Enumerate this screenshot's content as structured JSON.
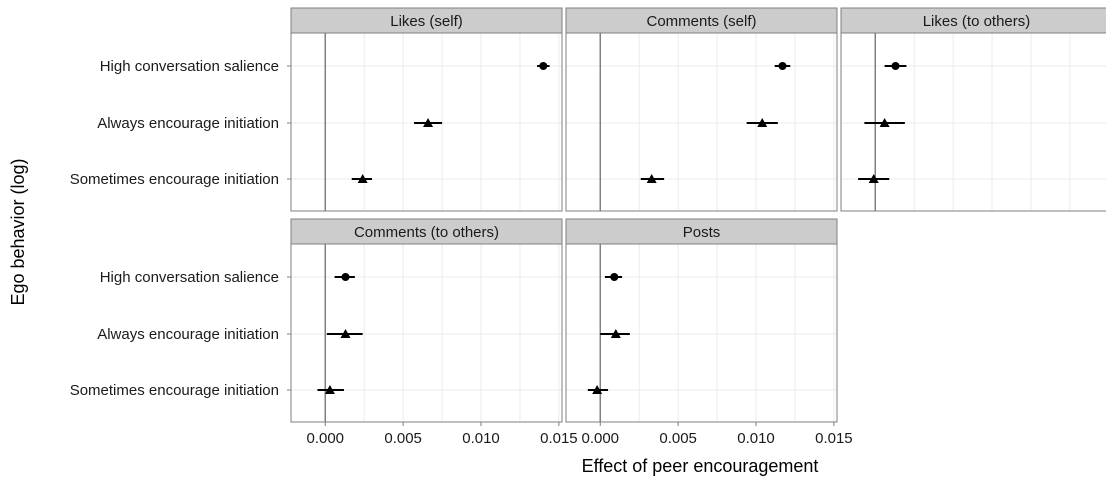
{
  "chart_data": {
    "type": "scatter",
    "variant": "faceted point-range (estimate with error bars)",
    "xlabel": "Effect of peer encouragement",
    "ylabel": "Ego behavior (log)",
    "categories": [
      "High conversation salience",
      "Always encourage initiation",
      "Sometimes encourage initiation"
    ],
    "xlim": [
      -0.0022,
      0.0152
    ],
    "x_ticks": [
      0.0,
      0.005,
      0.01,
      0.015
    ],
    "x_tick_labels": [
      "0.000",
      "0.005",
      "0.010",
      "0.015"
    ],
    "reference_line_x": 0,
    "grid": true,
    "marker_shapes": {
      "High conversation salience": "circle",
      "Always encourage initiation": "triangle",
      "Sometimes encourage initiation": "triangle"
    },
    "panels": [
      {
        "title": "Likes (self)",
        "points": [
          {
            "category": "High conversation salience",
            "estimate": 0.014,
            "lower": 0.0136,
            "upper": 0.0144
          },
          {
            "category": "Always encourage initiation",
            "estimate": 0.0066,
            "lower": 0.0057,
            "upper": 0.0075
          },
          {
            "category": "Sometimes encourage initiation",
            "estimate": 0.0024,
            "lower": 0.0017,
            "upper": 0.003
          }
        ]
      },
      {
        "title": "Comments (self)",
        "points": [
          {
            "category": "High conversation salience",
            "estimate": 0.0117,
            "lower": 0.0112,
            "upper": 0.0122
          },
          {
            "category": "Always encourage initiation",
            "estimate": 0.0104,
            "lower": 0.0094,
            "upper": 0.0114
          },
          {
            "category": "Sometimes encourage initiation",
            "estimate": 0.0033,
            "lower": 0.0026,
            "upper": 0.0041
          }
        ]
      },
      {
        "title": "Likes (to others)",
        "points": [
          {
            "category": "High conversation salience",
            "estimate": 0.0013,
            "lower": 0.0006,
            "upper": 0.002
          },
          {
            "category": "Always encourage initiation",
            "estimate": 0.0006,
            "lower": -0.0007,
            "upper": 0.0019
          },
          {
            "category": "Sometimes encourage initiation",
            "estimate": -0.0001,
            "lower": -0.0011,
            "upper": 0.0009
          }
        ]
      },
      {
        "title": "Comments (to others)",
        "points": [
          {
            "category": "High conversation salience",
            "estimate": 0.0013,
            "lower": 0.0006,
            "upper": 0.0019
          },
          {
            "category": "Always encourage initiation",
            "estimate": 0.0013,
            "lower": 0.0001,
            "upper": 0.0024
          },
          {
            "category": "Sometimes encourage initiation",
            "estimate": 0.0003,
            "lower": -0.0005,
            "upper": 0.0012
          }
        ]
      },
      {
        "title": "Posts",
        "points": [
          {
            "category": "High conversation salience",
            "estimate": 0.0009,
            "lower": 0.0003,
            "upper": 0.0014
          },
          {
            "category": "Always encourage initiation",
            "estimate": 0.001,
            "lower": 0.0,
            "upper": 0.0019
          },
          {
            "category": "Sometimes encourage initiation",
            "estimate": -0.0002,
            "lower": -0.0008,
            "upper": 0.0005
          }
        ]
      }
    ]
  },
  "colors": {
    "panel_background": "#ffffff",
    "panel_border": "#7f7f7f",
    "strip_background": "#cccccc",
    "grid": "#ebebeb",
    "reference_line": "#808080",
    "marker": "#000000"
  }
}
